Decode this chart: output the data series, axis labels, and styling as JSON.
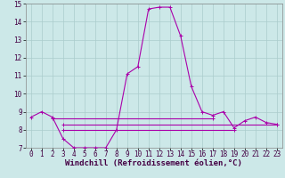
{
  "xlabel": "Windchill (Refroidissement éolien,°C)",
  "xlim": [
    -0.5,
    23.5
  ],
  "ylim": [
    7,
    15
  ],
  "xticks": [
    0,
    1,
    2,
    3,
    4,
    5,
    6,
    7,
    8,
    9,
    10,
    11,
    12,
    13,
    14,
    15,
    16,
    17,
    18,
    19,
    20,
    21,
    22,
    23
  ],
  "yticks": [
    7,
    8,
    9,
    10,
    11,
    12,
    13,
    14,
    15
  ],
  "bg_color": "#cce8e8",
  "grid_color": "#b0d0d0",
  "line_color": "#aa00aa",
  "main_line": {
    "x": [
      0,
      1,
      2,
      3,
      4,
      5,
      6,
      7,
      8,
      9,
      10,
      11,
      12,
      13,
      14,
      15,
      16,
      17,
      18,
      19,
      20,
      21,
      22,
      23
    ],
    "y": [
      8.7,
      9.0,
      8.7,
      7.5,
      7.0,
      7.0,
      7.0,
      7.0,
      8.0,
      11.1,
      11.5,
      14.7,
      14.8,
      14.8,
      13.2,
      10.4,
      9.0,
      8.8,
      9.0,
      8.1,
      8.5,
      8.7,
      8.4,
      8.3
    ]
  },
  "ref_line1": {
    "x": [
      2,
      17
    ],
    "y": [
      8.65,
      8.65
    ]
  },
  "ref_line2": {
    "x": [
      3,
      23
    ],
    "y": [
      8.3,
      8.3
    ]
  },
  "ref_line3": {
    "x": [
      3,
      19
    ],
    "y": [
      8.0,
      8.0
    ]
  },
  "tick_fontsize": 5.5,
  "xlabel_fontsize": 6.5,
  "line_width": 0.8,
  "marker_size": 3.5
}
